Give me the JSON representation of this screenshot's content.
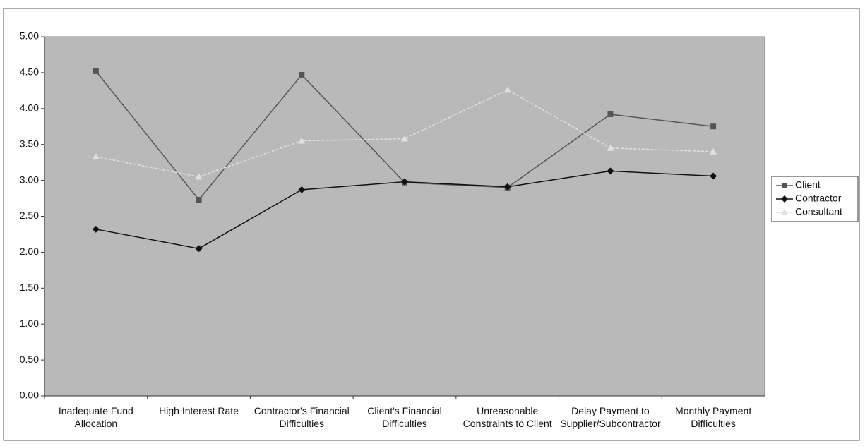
{
  "chart_data": {
    "type": "line",
    "categories": [
      "Inadequate Fund Allocation",
      "High Interest Rate",
      "Contractor's Financial Difficulties",
      "Client's Financial Difficulties",
      "Unreasonable Constraints to Client",
      "Delay Payment to Supplier/Subcontractor",
      "Monthly Payment Difficulties"
    ],
    "series": [
      {
        "name": "Client",
        "color": "#555555",
        "marker": "square",
        "values": [
          4.52,
          2.73,
          4.47,
          2.97,
          2.9,
          3.92,
          3.75
        ]
      },
      {
        "name": "Contractor",
        "color": "#111111",
        "marker": "diamond",
        "values": [
          2.32,
          2.05,
          2.87,
          2.98,
          2.91,
          3.13,
          3.06
        ]
      },
      {
        "name": "Consultant",
        "color": "#e0e0e0",
        "marker": "triangle",
        "values": [
          3.33,
          3.05,
          3.55,
          3.58,
          4.26,
          3.45,
          3.4
        ]
      }
    ],
    "ylim": [
      0,
      5
    ],
    "yticks": [
      {
        "value": 0,
        "label": "0.00"
      },
      {
        "value": 0.5,
        "label": "0.50"
      },
      {
        "value": 1,
        "label": "1.00"
      },
      {
        "value": 1.5,
        "label": "1.50"
      },
      {
        "value": 2,
        "label": "2.00"
      },
      {
        "value": 2.5,
        "label": "2.50"
      },
      {
        "value": 3,
        "label": "3.00"
      },
      {
        "value": 3.5,
        "label": "3.50"
      },
      {
        "value": 4,
        "label": "4.00"
      },
      {
        "value": 4.5,
        "label": "4.50"
      },
      {
        "value": 5,
        "label": "5.00"
      }
    ],
    "grid": false,
    "legend": "right"
  }
}
